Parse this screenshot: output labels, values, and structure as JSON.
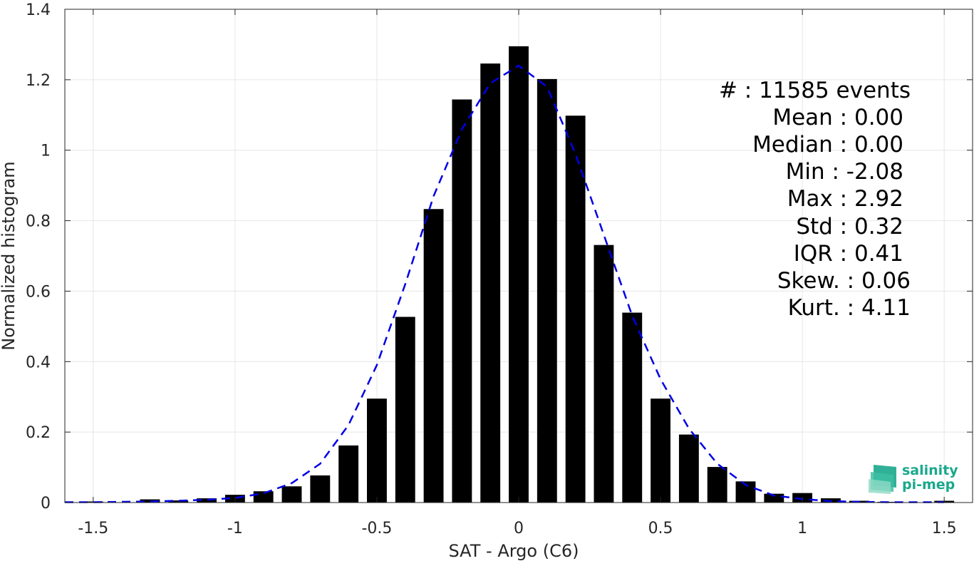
{
  "chart_data": {
    "type": "bar",
    "xlabel": "SAT - Argo (C6)",
    "ylabel": "Normalized histogram",
    "xlim": [
      -1.6,
      1.6
    ],
    "ylim": [
      0,
      1.4
    ],
    "xticks": [
      -1.5,
      -1,
      -0.5,
      0,
      0.5,
      1,
      1.5
    ],
    "xtick_labels": [
      "-1.5",
      "-1",
      "-0.5",
      "0",
      "0.5",
      "1",
      "1.5"
    ],
    "yticks": [
      0,
      0.2,
      0.4,
      0.6,
      0.8,
      1,
      1.2,
      1.4
    ],
    "ytick_labels": [
      "0",
      "0.2",
      "0.4",
      "0.6",
      "0.8",
      "1",
      "1.2",
      "1.4"
    ],
    "grid": true,
    "bar_width": 0.07,
    "x": [
      -1.5,
      -1.4,
      -1.3,
      -1.2,
      -1.1,
      -1.0,
      -0.9,
      -0.8,
      -0.7,
      -0.6,
      -0.5,
      -0.4,
      -0.3,
      -0.2,
      -0.1,
      0.0,
      0.1,
      0.2,
      0.3,
      0.4,
      0.5,
      0.6,
      0.7,
      0.8,
      0.9,
      1.0,
      1.1,
      1.2,
      1.3,
      1.5
    ],
    "values": [
      0.003,
      0.001,
      0.009,
      0.006,
      0.012,
      0.022,
      0.032,
      0.046,
      0.077,
      0.162,
      0.295,
      0.527,
      0.833,
      1.144,
      1.246,
      1.295,
      1.202,
      1.098,
      0.731,
      0.539,
      0.295,
      0.193,
      0.101,
      0.06,
      0.025,
      0.027,
      0.012,
      0.005,
      0.002,
      0.005
    ],
    "fit_curve": {
      "style": "dashed",
      "color": "#0000e6",
      "x": [
        -1.6,
        -1.5,
        -1.4,
        -1.3,
        -1.2,
        -1.1,
        -1.0,
        -0.9,
        -0.8,
        -0.7,
        -0.6,
        -0.5,
        -0.4,
        -0.3,
        -0.2,
        -0.1,
        0.0,
        0.1,
        0.2,
        0.3,
        0.4,
        0.5,
        0.6,
        0.7,
        0.8,
        0.9,
        1.0,
        1.1,
        1.2,
        1.3,
        1.4,
        1.5
      ],
      "y": [
        0.001,
        0.001,
        0.002,
        0.003,
        0.005,
        0.008,
        0.013,
        0.026,
        0.055,
        0.11,
        0.22,
        0.39,
        0.62,
        0.87,
        1.06,
        1.19,
        1.24,
        1.18,
        0.99,
        0.76,
        0.53,
        0.35,
        0.21,
        0.11,
        0.05,
        0.02,
        0.01,
        0.004,
        0.002,
        0.001,
        0.001,
        0.001
      ]
    },
    "bar_color": "#000000"
  },
  "stats": {
    "count": "#  : 11585 events",
    "mean": "Mean : 0.00",
    "median": "Median : 0.00",
    "min": "Min : -2.08",
    "max": "Max : 2.92",
    "std": "Std : 0.32",
    "iqr": "IQR : 0.41",
    "skew": "Skew. : 0.06",
    "kurt": "Kurt. : 4.11"
  },
  "logo": {
    "line1": "salinity",
    "line2": "pi-mep",
    "color": "#1aa88c"
  }
}
